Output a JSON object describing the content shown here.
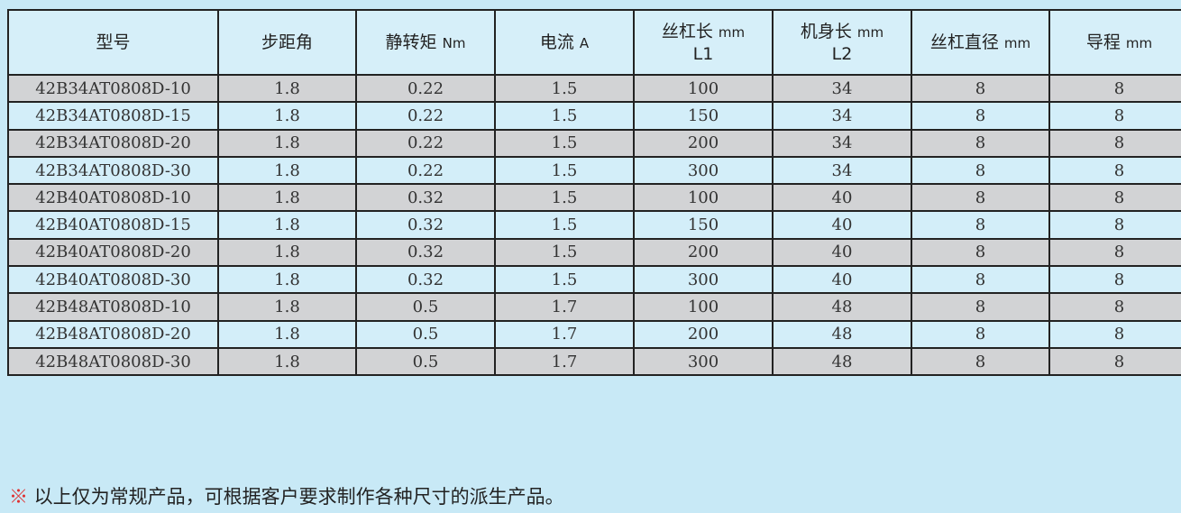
{
  "table": {
    "headers": [
      {
        "label": "型号",
        "unit": "",
        "sub": ""
      },
      {
        "label": "步距角",
        "unit": "",
        "sub": ""
      },
      {
        "label": "静转矩",
        "unit": "Nm",
        "sub": ""
      },
      {
        "label": "电流",
        "unit": "A",
        "sub": ""
      },
      {
        "label": "丝杠长",
        "unit": "mm",
        "sub": "L1"
      },
      {
        "label": "机身长",
        "unit": "mm",
        "sub": "L2"
      },
      {
        "label": "丝杠直径",
        "unit": "mm",
        "sub": ""
      },
      {
        "label": "导程",
        "unit": "mm",
        "sub": ""
      }
    ],
    "rows": [
      [
        "42B34AT0808D-10",
        "1.8",
        "0.22",
        "1.5",
        "100",
        "34",
        "8",
        "8"
      ],
      [
        "42B34AT0808D-15",
        "1.8",
        "0.22",
        "1.5",
        "150",
        "34",
        "8",
        "8"
      ],
      [
        "42B34AT0808D-20",
        "1.8",
        "0.22",
        "1.5",
        "200",
        "34",
        "8",
        "8"
      ],
      [
        "42B34AT0808D-30",
        "1.8",
        "0.22",
        "1.5",
        "300",
        "34",
        "8",
        "8"
      ],
      [
        "42B40AT0808D-10",
        "1.8",
        "0.32",
        "1.5",
        "100",
        "40",
        "8",
        "8"
      ],
      [
        "42B40AT0808D-15",
        "1.8",
        "0.32",
        "1.5",
        "150",
        "40",
        "8",
        "8"
      ],
      [
        "42B40AT0808D-20",
        "1.8",
        "0.32",
        "1.5",
        "200",
        "40",
        "8",
        "8"
      ],
      [
        "42B40AT0808D-30",
        "1.8",
        "0.32",
        "1.5",
        "300",
        "40",
        "8",
        "8"
      ],
      [
        "42B48AT0808D-10",
        "1.8",
        "0.5",
        "1.7",
        "100",
        "48",
        "8",
        "8"
      ],
      [
        "42B48AT0808D-20",
        "1.8",
        "0.5",
        "1.7",
        "200",
        "48",
        "8",
        "8"
      ],
      [
        "42B48AT0808D-30",
        "1.8",
        "0.5",
        "1.7",
        "300",
        "48",
        "8",
        "8"
      ]
    ]
  },
  "note": {
    "mark": "※",
    "text": " 以上仅为常规产品，可根据客户要求制作各种尺寸的派生产品。"
  },
  "colors": {
    "background": "#c8e9f6",
    "row_gray": "#d2d3d5",
    "row_blue": "#d3eef9",
    "note_mark": "#e03030"
  }
}
